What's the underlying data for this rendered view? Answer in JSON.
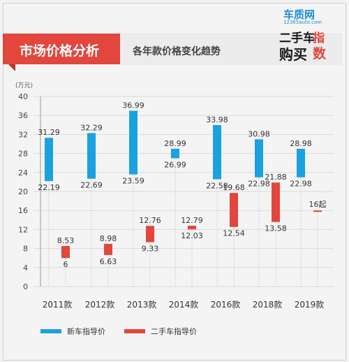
{
  "header": {
    "title": "市场价格分析",
    "subtitle": "各年款价格变化趋势"
  },
  "logo": {
    "site": "车质网",
    "url": "12365auto.com",
    "tag_left_1": "二手车",
    "tag_left_2": "购买",
    "tag_right_1": "指",
    "tag_right_2": "数"
  },
  "colors": {
    "new": "#1aa1e0",
    "used": "#e2463c",
    "header": "#e2463c"
  },
  "chart_data": {
    "type": "bar",
    "unit": "(万元)",
    "ylim": [
      0,
      40
    ],
    "yticks": [
      0,
      4,
      8,
      12,
      16,
      20,
      24,
      28,
      32,
      36,
      40
    ],
    "categories": [
      "2011款",
      "2012款",
      "2013款",
      "2014款",
      "2016款",
      "2018款",
      "2019款"
    ],
    "series": [
      {
        "name": "新车指导价",
        "ranges": [
          [
            22.19,
            31.29
          ],
          [
            22.69,
            32.29
          ],
          [
            23.59,
            36.99
          ],
          [
            26.99,
            28.99
          ],
          [
            22.58,
            33.98
          ],
          [
            22.98,
            30.98
          ],
          [
            22.98,
            28.98
          ]
        ],
        "labels_high": [
          "31.29",
          "32.29",
          "36.99",
          "28.99",
          "33.98",
          "30.98",
          "28.98"
        ],
        "labels_low": [
          "22.19",
          "22.69",
          "23.59",
          "26.99",
          "22.58",
          "22.98",
          "22.98"
        ]
      },
      {
        "name": "二手车指导价",
        "ranges": [
          [
            6,
            8.53
          ],
          [
            6.63,
            8.98
          ],
          [
            9.33,
            12.76
          ],
          [
            12.03,
            12.79
          ],
          [
            12.54,
            19.68
          ],
          [
            13.58,
            21.88
          ],
          [
            16,
            16
          ]
        ],
        "labels_high": [
          "8.53",
          "8.98",
          "12.76",
          "12.79",
          "19.68",
          "21.88",
          "16起"
        ],
        "labels_low": [
          "6",
          "6.63",
          "9.33",
          "12.03",
          "12.54",
          "13.58",
          ""
        ]
      }
    ],
    "legend": [
      "新车指导价",
      "二手车指导价"
    ],
    "grid": true
  }
}
